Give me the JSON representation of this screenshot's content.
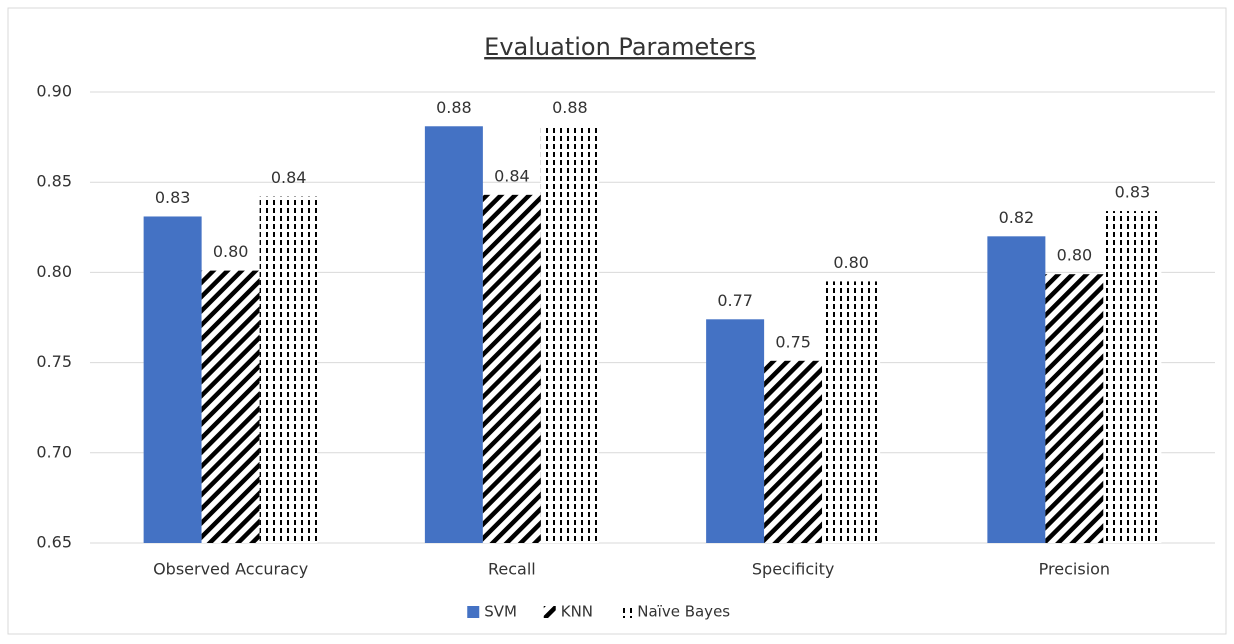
{
  "chart_data": {
    "type": "bar",
    "title": "Evaluation Parameters",
    "categories": [
      "Observed Accuracy",
      "Recall",
      "Specificity",
      "Precision"
    ],
    "series": [
      {
        "name": "SVM",
        "color": "#4472c4",
        "pattern": "solid",
        "values": [
          0.831,
          0.881,
          0.774,
          0.82
        ],
        "value_labels": [
          "0.83",
          "0.88",
          "0.77",
          "0.82"
        ]
      },
      {
        "name": "KNN",
        "color": "#000000",
        "pattern": "diagonal",
        "values": [
          0.801,
          0.843,
          0.751,
          0.799
        ],
        "value_labels": [
          "0.80",
          "0.84",
          "0.75",
          "0.80"
        ]
      },
      {
        "name": "Naïve Bayes",
        "color": "#000000",
        "pattern": "dashed-vertical",
        "values": [
          0.842,
          0.881,
          0.795,
          0.834
        ],
        "value_labels": [
          "0.84",
          "0.88",
          "0.80",
          "0.83"
        ]
      }
    ],
    "ylim": [
      0.65,
      0.9
    ],
    "yticks": [
      0.65,
      {
        "value": 0.7,
        "label": "0.70"
      },
      0.75,
      {
        "value": 0.8,
        "label": "0.80"
      },
      0.85,
      {
        "value": 0.9,
        "label": "0.90"
      }
    ],
    "grid": true,
    "legend": "bottom"
  }
}
